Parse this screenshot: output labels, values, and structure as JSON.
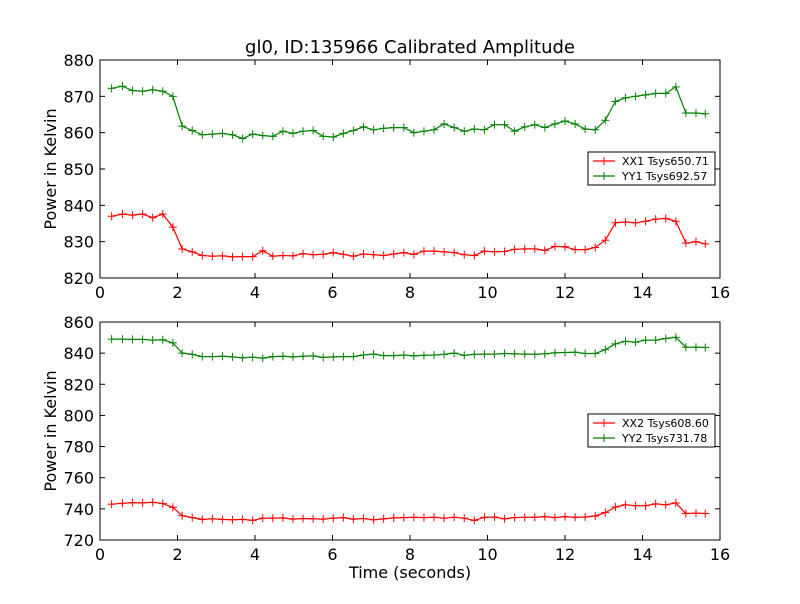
{
  "title": "gl0, ID:135966 Calibrated Amplitude",
  "colors": {
    "xx": "#ff0000",
    "yy": "#008000",
    "axis": "#000000"
  },
  "chart_data": [
    {
      "type": "line",
      "title": "gl0, ID:135966 Calibrated Amplitude",
      "xlabel": "",
      "ylabel": "Power in Kelvin",
      "xlim": [
        0,
        16
      ],
      "ylim": [
        820,
        880
      ],
      "xticks": [
        0,
        2,
        4,
        6,
        8,
        10,
        12,
        14,
        16
      ],
      "yticks": [
        820,
        830,
        840,
        850,
        860,
        870,
        880
      ],
      "grid": false,
      "legend_position": "right",
      "x": [
        0.3,
        0.58,
        0.84,
        1.1,
        1.36,
        1.62,
        1.88,
        2.12,
        2.38,
        2.64,
        2.9,
        3.16,
        3.42,
        3.68,
        3.94,
        4.2,
        4.46,
        4.72,
        4.98,
        5.24,
        5.5,
        5.76,
        6.02,
        6.28,
        6.54,
        6.8,
        7.06,
        7.32,
        7.58,
        7.84,
        8.1,
        8.36,
        8.62,
        8.88,
        9.14,
        9.4,
        9.66,
        9.92,
        10.18,
        10.44,
        10.7,
        10.96,
        11.22,
        11.48,
        11.74,
        12.0,
        12.26,
        12.52,
        12.78,
        13.04,
        13.3,
        13.56,
        13.82,
        14.08,
        14.34,
        14.6,
        14.86,
        15.12,
        15.38,
        15.62
      ],
      "series": [
        {
          "name": "XX1 Tsys650.71",
          "color": "#ff0000",
          "values": [
            837.0,
            837.6,
            837.3,
            837.6,
            836.6,
            837.6,
            834.0,
            828.0,
            827.2,
            826.2,
            826.0,
            826.1,
            825.8,
            825.9,
            825.9,
            827.5,
            826.0,
            826.2,
            826.1,
            826.7,
            826.4,
            826.5,
            827.0,
            826.5,
            826.0,
            826.6,
            826.4,
            826.2,
            826.6,
            827.0,
            826.5,
            827.4,
            827.4,
            827.2,
            827.0,
            826.4,
            826.2,
            827.4,
            827.2,
            827.3,
            827.9,
            828.0,
            828.0,
            827.6,
            828.7,
            828.6,
            827.8,
            827.8,
            828.4,
            830.4,
            835.2,
            835.4,
            835.2,
            835.6,
            836.2,
            836.4,
            835.6,
            829.6,
            830.0,
            829.4
          ]
        },
        {
          "name": "YY1 Tsys692.57",
          "color": "#008000",
          "values": [
            872.2,
            872.8,
            871.6,
            871.4,
            871.8,
            871.4,
            870.0,
            861.8,
            860.6,
            859.4,
            859.6,
            859.8,
            859.4,
            858.4,
            859.6,
            859.2,
            859.0,
            860.4,
            859.8,
            860.4,
            860.6,
            859.0,
            858.8,
            859.8,
            860.6,
            861.6,
            860.8,
            861.2,
            861.4,
            861.4,
            860.0,
            860.4,
            860.8,
            862.4,
            861.4,
            860.4,
            861.0,
            860.8,
            862.2,
            862.2,
            860.4,
            861.6,
            862.2,
            861.4,
            862.4,
            863.2,
            862.4,
            861.0,
            860.8,
            863.4,
            868.6,
            869.6,
            870.0,
            870.4,
            870.8,
            870.8,
            872.6,
            865.4,
            865.4,
            865.2
          ]
        }
      ]
    },
    {
      "type": "line",
      "title": "",
      "xlabel": "Time (seconds)",
      "ylabel": "Power in Kelvin",
      "xlim": [
        0,
        16
      ],
      "ylim": [
        720,
        860
      ],
      "xticks": [
        0,
        2,
        4,
        6,
        8,
        10,
        12,
        14,
        16
      ],
      "yticks": [
        720,
        740,
        760,
        780,
        800,
        820,
        840,
        860
      ],
      "grid": false,
      "legend_position": "right",
      "x": [
        0.3,
        0.58,
        0.84,
        1.1,
        1.36,
        1.62,
        1.88,
        2.12,
        2.38,
        2.64,
        2.9,
        3.16,
        3.42,
        3.68,
        3.94,
        4.2,
        4.46,
        4.72,
        4.98,
        5.24,
        5.5,
        5.76,
        6.02,
        6.28,
        6.54,
        6.8,
        7.06,
        7.32,
        7.58,
        7.84,
        8.1,
        8.36,
        8.62,
        8.88,
        9.14,
        9.4,
        9.66,
        9.92,
        10.18,
        10.44,
        10.7,
        10.96,
        11.22,
        11.48,
        11.74,
        12.0,
        12.26,
        12.52,
        12.78,
        13.04,
        13.3,
        13.56,
        13.82,
        14.08,
        14.34,
        14.6,
        14.86,
        15.12,
        15.38,
        15.62
      ],
      "series": [
        {
          "name": "XX2 Tsys608.60",
          "color": "#ff0000",
          "values": [
            743.0,
            743.6,
            744.0,
            743.8,
            744.2,
            743.4,
            741.0,
            735.6,
            734.4,
            733.2,
            733.6,
            733.2,
            733.0,
            733.2,
            732.6,
            734.0,
            734.0,
            734.2,
            733.4,
            733.8,
            733.6,
            733.4,
            734.0,
            734.4,
            733.4,
            733.8,
            733.0,
            733.6,
            734.2,
            734.4,
            734.6,
            734.4,
            734.6,
            734.0,
            734.6,
            734.0,
            732.6,
            734.6,
            734.8,
            733.6,
            734.4,
            734.6,
            734.6,
            735.0,
            734.4,
            735.0,
            734.6,
            734.8,
            735.4,
            737.6,
            741.2,
            742.6,
            742.0,
            742.0,
            743.2,
            742.6,
            743.8,
            737.0,
            737.2,
            737.0
          ],
          "values_note": ""
        },
        {
          "name": "YY2 Tsys731.78",
          "color": "#008000",
          "values": [
            849.0,
            849.0,
            848.8,
            848.8,
            848.4,
            848.6,
            846.6,
            840.0,
            839.2,
            837.8,
            837.8,
            838.0,
            837.6,
            837.0,
            837.4,
            836.8,
            837.8,
            838.0,
            837.6,
            838.0,
            838.2,
            837.2,
            837.6,
            837.8,
            837.8,
            838.8,
            839.4,
            838.4,
            838.4,
            838.8,
            838.2,
            838.6,
            838.8,
            839.2,
            840.0,
            838.6,
            839.2,
            839.4,
            839.4,
            839.8,
            839.6,
            839.4,
            839.2,
            839.6,
            840.2,
            840.4,
            840.6,
            839.8,
            839.8,
            842.2,
            846.0,
            847.6,
            847.0,
            848.4,
            848.4,
            849.4,
            850.2,
            843.8,
            843.8,
            843.6
          ]
        }
      ]
    }
  ]
}
